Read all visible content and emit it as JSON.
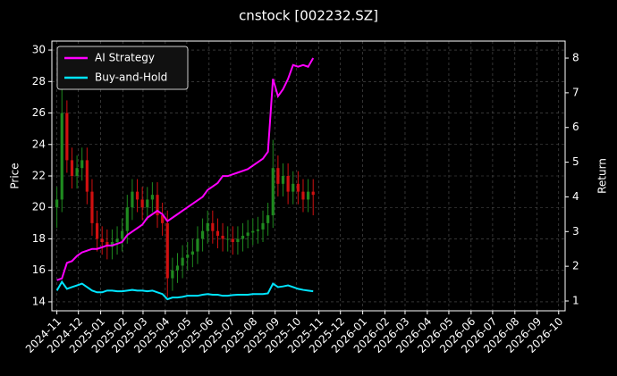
{
  "chart_data": {
    "type": "candlestick",
    "title": "cnstock [002232.SZ]",
    "ylabel": "Price",
    "y2label": "Return",
    "x": [
      "2024-11-01",
      "2024-11-08",
      "2024-11-15",
      "2024-11-22",
      "2024-11-29",
      "2024-12-06",
      "2024-12-13",
      "2024-12-20",
      "2024-12-27",
      "2025-01-03",
      "2025-01-10",
      "2025-01-17",
      "2025-01-24",
      "2025-01-31",
      "2025-02-07",
      "2025-02-14",
      "2025-02-21",
      "2025-02-28",
      "2025-03-07",
      "2025-03-14",
      "2025-03-21",
      "2025-03-28",
      "2025-04-04",
      "2025-04-11",
      "2025-04-18",
      "2025-04-25",
      "2025-05-02",
      "2025-05-09",
      "2025-05-16",
      "2025-05-23",
      "2025-05-30",
      "2025-06-06",
      "2025-06-13",
      "2025-06-20",
      "2025-06-27",
      "2025-07-04",
      "2025-07-11",
      "2025-07-18",
      "2025-07-25",
      "2025-08-01",
      "2025-08-08",
      "2025-08-15",
      "2025-08-22",
      "2025-08-29",
      "2025-09-05",
      "2025-09-12",
      "2025-09-19",
      "2025-09-26",
      "2025-10-03",
      "2025-10-10",
      "2025-10-17",
      "2025-10-24"
    ],
    "open": [
      20,
      20.5,
      26,
      23,
      22,
      22.5,
      23,
      21,
      19,
      18,
      17.8,
      17.5,
      17.8,
      18,
      18.5,
      20,
      21,
      20.5,
      20,
      20.5,
      20.8,
      19.5,
      19,
      15.5,
      16,
      16.3,
      16.8,
      17,
      17.2,
      18,
      18.5,
      19,
      18.5,
      18.2,
      18,
      18,
      17.8,
      18,
      18.2,
      18.4,
      18.5,
      18.6,
      19,
      19.5,
      22.5,
      21.5,
      22,
      21,
      21.5,
      21,
      20.5,
      21
    ],
    "high": [
      21.3,
      27.8,
      26.8,
      23.8,
      23.3,
      23.8,
      23.8,
      21.8,
      19.8,
      18.8,
      18.6,
      18.6,
      18.8,
      19.3,
      20.8,
      21.8,
      21.8,
      21.3,
      21.3,
      21.6,
      21.6,
      20.3,
      19.8,
      16.8,
      17.1,
      17.6,
      17.8,
      18,
      18.8,
      19.3,
      19.8,
      19.8,
      19.3,
      19,
      18.8,
      18.8,
      18.8,
      19,
      19.2,
      19.3,
      19.4,
      19.8,
      20.3,
      24.3,
      23.3,
      22.8,
      22.8,
      22.3,
      22.3,
      21.8,
      21.8,
      21.8
    ],
    "low": [
      18.7,
      19.7,
      22.2,
      21.2,
      21.2,
      21.7,
      20.2,
      18.2,
      17.2,
      17,
      16.7,
      16.7,
      17,
      17.2,
      17.7,
      19.2,
      19.7,
      19.2,
      19.2,
      19.7,
      18.7,
      18.2,
      14.3,
      14.7,
      15.2,
      15.5,
      16,
      16.2,
      16.4,
      17.2,
      17.7,
      17.7,
      17.4,
      17.2,
      17.2,
      17,
      17,
      17.2,
      17.4,
      17.6,
      17.7,
      17.8,
      18.2,
      18.7,
      20.7,
      20.7,
      20.2,
      20.2,
      20.2,
      19.7,
      19.7,
      19.5
    ],
    "close": [
      20.5,
      26,
      23,
      22,
      22.5,
      23,
      21,
      19,
      18,
      17.8,
      17.5,
      17.8,
      18,
      18.5,
      20,
      21,
      20.5,
      20,
      20.5,
      20.8,
      19.5,
      19,
      15.5,
      16,
      16.3,
      16.8,
      17,
      17.2,
      18,
      18.5,
      19,
      18.5,
      18.2,
      18,
      18,
      17.8,
      18,
      18.2,
      18.4,
      18.5,
      18.6,
      19,
      19.5,
      22.5,
      21.5,
      22,
      21,
      21.5,
      21,
      20.5,
      21,
      20.8
    ],
    "up_color": "#1f8a1f",
    "down_color": "#d01010",
    "series": [
      {
        "name": "AI Strategy",
        "color": "#ff00ff",
        "axis": "y2",
        "values": [
          1.6,
          1.65,
          2.1,
          2.15,
          2.3,
          2.4,
          2.45,
          2.5,
          2.5,
          2.55,
          2.6,
          2.6,
          2.65,
          2.7,
          2.9,
          3.0,
          3.1,
          3.2,
          3.4,
          3.5,
          3.6,
          3.5,
          3.3,
          3.4,
          3.5,
          3.6,
          3.7,
          3.8,
          3.9,
          4.0,
          4.2,
          4.3,
          4.4,
          4.6,
          4.6,
          4.65,
          4.7,
          4.75,
          4.8,
          4.9,
          5.0,
          5.1,
          5.3,
          7.4,
          6.9,
          7.1,
          7.4,
          7.8,
          7.75,
          7.8,
          7.75,
          8.0
        ]
      },
      {
        "name": "Buy-and-Hold",
        "color": "#00e5ff",
        "axis": "y2",
        "values": [
          1.3,
          1.55,
          1.35,
          1.4,
          1.45,
          1.5,
          1.4,
          1.3,
          1.25,
          1.25,
          1.3,
          1.3,
          1.28,
          1.28,
          1.3,
          1.32,
          1.3,
          1.3,
          1.28,
          1.3,
          1.25,
          1.2,
          1.05,
          1.1,
          1.1,
          1.12,
          1.15,
          1.15,
          1.15,
          1.18,
          1.2,
          1.18,
          1.18,
          1.15,
          1.15,
          1.17,
          1.18,
          1.18,
          1.18,
          1.2,
          1.2,
          1.2,
          1.22,
          1.5,
          1.4,
          1.42,
          1.45,
          1.4,
          1.35,
          1.32,
          1.3,
          1.28
        ]
      }
    ],
    "xlim": [
      "2024-10-25",
      "2026-10-10"
    ],
    "xticks": [
      {
        "value": "2024-11-01",
        "label": "2024-11"
      },
      {
        "value": "2024-12-01",
        "label": "2024-12"
      },
      {
        "value": "2025-01-01",
        "label": "2025-01"
      },
      {
        "value": "2025-02-01",
        "label": "2025-02"
      },
      {
        "value": "2025-03-01",
        "label": "2025-03"
      },
      {
        "value": "2025-04-01",
        "label": "2025-04"
      },
      {
        "value": "2025-05-01",
        "label": "2025-05"
      },
      {
        "value": "2025-06-01",
        "label": "2025-06"
      },
      {
        "value": "2025-07-01",
        "label": "2025-07"
      },
      {
        "value": "2025-08-01",
        "label": "2025-08"
      },
      {
        "value": "2025-09-01",
        "label": "2025-09"
      },
      {
        "value": "2025-10-01",
        "label": "2025-10"
      },
      {
        "value": "2025-11-01",
        "label": "2025-11"
      },
      {
        "value": "2025-12-01",
        "label": "2025-12"
      },
      {
        "value": "2026-01-01",
        "label": "2026-01"
      },
      {
        "value": "2026-02-01",
        "label": "2026-02"
      },
      {
        "value": "2026-03-01",
        "label": "2026-03"
      },
      {
        "value": "2026-04-01",
        "label": "2026-04"
      },
      {
        "value": "2026-05-01",
        "label": "2026-05"
      },
      {
        "value": "2026-06-01",
        "label": "2026-06"
      },
      {
        "value": "2026-07-01",
        "label": "2026-07"
      },
      {
        "value": "2026-08-01",
        "label": "2026-08"
      },
      {
        "value": "2026-09-01",
        "label": "2026-09"
      },
      {
        "value": "2026-10-01",
        "label": "2026-10"
      }
    ],
    "ylim": [
      13.43,
      30.57
    ],
    "yticks": [
      14,
      16,
      18,
      20,
      22,
      24,
      26,
      28,
      30
    ],
    "y2lim": [
      0.717,
      8.49
    ],
    "y2ticks": [
      1,
      2,
      3,
      4,
      5,
      6,
      7,
      8
    ],
    "grid": true,
    "legend": "upper left"
  }
}
